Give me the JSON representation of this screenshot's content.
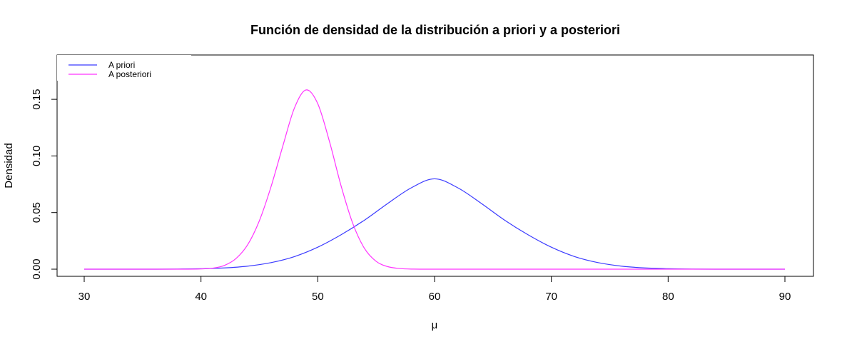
{
  "chart_data": {
    "type": "line",
    "title": "Función de densidad de la distribución a priori y a posteriori",
    "xlabel": "μ",
    "ylabel": "Densidad",
    "xlim": [
      30,
      90
    ],
    "ylim": [
      0,
      0.16
    ],
    "x_ticks": [
      "30",
      "40",
      "50",
      "60",
      "70",
      "80",
      "90"
    ],
    "y_ticks": [
      "0.00",
      "0.05",
      "0.10",
      "0.15"
    ],
    "legend_position": "top-left",
    "grid": false,
    "series": [
      {
        "name": "A priori",
        "color": "#3b3bff",
        "x": [
          30,
          32,
          34,
          36,
          38,
          40,
          42,
          44,
          46,
          48,
          50,
          52,
          54,
          56,
          58,
          60,
          62,
          64,
          66,
          68,
          70,
          72,
          74,
          76,
          78,
          80,
          82,
          84,
          86,
          88,
          90
        ],
        "y": [
          0.0,
          0.0,
          0.0,
          0.0,
          0.0001,
          0.0004,
          0.0011,
          0.0027,
          0.0058,
          0.0111,
          0.0194,
          0.0304,
          0.0433,
          0.0581,
          0.0718,
          0.0798,
          0.0718,
          0.0581,
          0.0433,
          0.0304,
          0.0194,
          0.0111,
          0.0058,
          0.0027,
          0.0011,
          0.0004,
          0.0001,
          0.0,
          0.0,
          0.0,
          0.0
        ]
      },
      {
        "name": "A posteriori",
        "color": "#ff33ff",
        "x": [
          30,
          38,
          40,
          41,
          42,
          43,
          44,
          45,
          46,
          47,
          48,
          49,
          50,
          51,
          52,
          53,
          54,
          55,
          56,
          57,
          58,
          60,
          70,
          80,
          90
        ],
        "y": [
          0.0,
          0.0,
          0.0002,
          0.0009,
          0.0033,
          0.0094,
          0.0216,
          0.0428,
          0.0729,
          0.1085,
          0.1423,
          0.1583,
          0.1461,
          0.1128,
          0.0734,
          0.0403,
          0.0183,
          0.0069,
          0.0022,
          0.0006,
          0.0001,
          0.0,
          0.0,
          0.0,
          0.0
        ]
      }
    ]
  }
}
